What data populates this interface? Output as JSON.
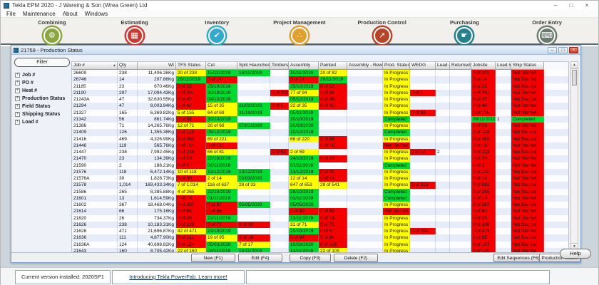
{
  "window": {
    "title": "Tekla EPM 2020 - J Wareing & Son (Wrea Green) Ltd",
    "controls": {
      "minimize": "–",
      "maximize": "□",
      "close": "×"
    }
  },
  "menu": {
    "items": [
      "File",
      "Maintenance",
      "About",
      "Windows"
    ]
  },
  "modules": [
    {
      "label": "Combining",
      "icon": "gears-icon",
      "glyph": "⚙",
      "color": "#8aa63f"
    },
    {
      "label": "Estimating",
      "icon": "calculator-icon",
      "glyph": "▦",
      "color": "#cc3b33"
    },
    {
      "label": "Inventory",
      "icon": "clipboard-icon",
      "glyph": "✔",
      "color": "#34a9cb"
    },
    {
      "label": "Project Management",
      "icon": "org-chart-icon",
      "glyph": "∴",
      "color": "#e0a030"
    },
    {
      "label": "Production Control",
      "icon": "line-chart-icon",
      "glyph": "↗",
      "color": "#b54428"
    },
    {
      "label": "Purchasing",
      "icon": "hand-card-icon",
      "glyph": "☛",
      "color": "#27808e"
    },
    {
      "label": "Order Entry",
      "icon": "keyboard-icon",
      "glyph": "⌨",
      "color": "#6a7a6f"
    }
  ],
  "child_window": {
    "title": "21759 - Production Status",
    "controls": {
      "minimize": "–",
      "maximize": "□",
      "close": "×"
    }
  },
  "filter_panel": {
    "filter_label": "Filter",
    "tree_items": [
      "Job #",
      "PO #",
      "Heat #",
      "Production Status",
      "Field Status",
      "Shipping Status",
      "Load #"
    ]
  },
  "grid": {
    "columns": [
      "Job #",
      "Qty",
      "Wt",
      "TFS Status",
      "Cut",
      "Split Haunches",
      "Timbers",
      "Assembly",
      "Painted",
      "Assembly - Rework",
      "Prod. Status",
      "WEDG",
      "Lead #",
      "Returned",
      "Jobsite",
      "Load #",
      "Ship Status"
    ],
    "widths": [
      64,
      28,
      54,
      42,
      44,
      46,
      26,
      42,
      40,
      50,
      38,
      36,
      20,
      30,
      34,
      22,
      46
    ],
    "sort_column": "Job #",
    "sort_indicator": "▲",
    "status_colors": {
      "r": "#f40000",
      "g": "#00d92e",
      "y": "#ffff00"
    },
    "rows": [
      [
        "26609",
        "238",
        "11,406.26Kg",
        "y:20 of 238",
        "g:15/11/2019",
        "g:14/11/2019",
        "",
        "g:18/11/2019",
        "y:20 of 82",
        "",
        "y:In Progress",
        "",
        "",
        "",
        "r:0 of 202",
        "",
        "r:Not Started"
      ],
      [
        "26746",
        "14",
        "207.86Kg",
        "g:26/11/2019",
        "r:0 of 14",
        "",
        "",
        "r:0 of 14",
        "g:26/11/2019",
        "",
        "y:In Progress",
        "",
        "",
        "",
        "r:0 of 14",
        "",
        "r:Not Started"
      ],
      [
        "21185",
        "23",
        "670.46Kg",
        "r:0 of 23",
        "g:25/10/2019",
        "",
        "",
        "g:25/10/2019",
        "r:0 of 10",
        "",
        "y:In Progress",
        "",
        "",
        "",
        "r:0 of 23",
        "",
        "r:Not Started"
      ],
      [
        "21190",
        "297",
        "17,094.43Kg",
        "r:0 of 297",
        "g:30/10/2019",
        "",
        "r:0 of 203",
        "y:77 of 94",
        "r:0 of 94",
        "",
        "y:In Progress",
        "r:0 of 1",
        "",
        "",
        "r:0 of 297",
        "",
        "r:Not Started"
      ],
      [
        "21243A",
        "47",
        "32,630.55Kg",
        "r:0 of 47",
        "g:04/12/2019",
        "",
        "",
        "g:05/12/2019",
        "r:0 of 46",
        "",
        "y:In Progress",
        "",
        "",
        "",
        "r:0 of 47",
        "",
        "r:Not Started"
      ],
      [
        "21294",
        "47",
        "8,003.94Kg",
        "r:0 of 47",
        "y:15 of 35",
        "g:21/02/2020",
        "r:0 of 5",
        "y:32 of 35",
        "r:0 of 35",
        "",
        "y:In Progress",
        "",
        "",
        "",
        "r:0 of 40",
        "",
        "r:Not Started"
      ],
      [
        "21327",
        "165",
        "6,369.82Kg",
        "y:5 of 155",
        "y:64 of 69",
        "g:31/10/2019",
        "",
        "g:05/11/2019",
        "",
        "",
        "y:In Progress",
        "r:0 of 69",
        "",
        "",
        "r:0 of 135",
        "",
        "r:Not Started"
      ],
      [
        "21342",
        "56",
        "861.74Kg",
        "r:0 of 55",
        "g:30/10/2019",
        "",
        "",
        "g:30/10/2019",
        "",
        "",
        "g:Completed",
        "",
        "",
        "",
        "g:06/11/2019",
        "1",
        "g:Completed"
      ],
      [
        "21386",
        "71",
        "14,265.76Kg",
        "y:12 of 71",
        "y:28 of 68",
        "g:07/01/2020",
        "",
        "g:20/03/2020",
        "",
        "",
        "y:In Progress",
        "",
        "",
        "",
        "r:0 of 59",
        "",
        "r:Not Started"
      ],
      [
        "21409",
        "126",
        "1,355.38Kg",
        "r:0 of 126",
        "g:05/12/2019",
        "",
        "",
        "g:10/12/2019",
        "",
        "",
        "g:Completed",
        "",
        "",
        "",
        "r:0 of 126",
        "",
        "r:Not Started"
      ],
      [
        "21416",
        "469",
        "4,326.99Kg",
        "r:0 of 469",
        "y:69 of 221",
        "",
        "",
        "y:68 of 220",
        "r:0 of 68",
        "",
        "y:In Progress",
        "",
        "",
        "",
        "r:0 of 469",
        "",
        "r:Not Started"
      ],
      [
        "21446",
        "119",
        "565.76Kg",
        "r:0 of 110",
        "r:0 of 116",
        "",
        "",
        "",
        "r:0 of 110",
        "",
        "r:Not Started",
        "",
        "",
        "",
        "r:0 of 110",
        "",
        "r:Not Started"
      ],
      [
        "21447",
        "238",
        "7,992.45Kg",
        "r:0 of 238",
        "y:66 of 81",
        "",
        "r:0 of 62",
        "y:2 of 59",
        "",
        "",
        "y:In Progress",
        "r:0 of 14",
        "2",
        "",
        "r:0 of 223",
        "",
        "r:Not Started"
      ],
      [
        "21470",
        "23",
        "134.39Kg",
        "r:0 of 23",
        "g:25/10/2019",
        "",
        "",
        "g:24/10/2019",
        "r:0 of 23",
        "",
        "y:In Progress",
        "",
        "",
        "",
        "r:0 of 23",
        "",
        "r:Not Started"
      ],
      [
        "21590",
        "2",
        "188.21Kg",
        "r:0 of 2",
        "g:06/11/2019",
        "",
        "",
        "g:07/11/2019",
        "",
        "",
        "g:Completed",
        "",
        "",
        "",
        "r:0 of 2",
        "",
        "r:Not Started"
      ],
      [
        "21576",
        "118",
        "6,472.14Kg",
        "y:10 of 118",
        "g:13/12/2019",
        "g:13/12/2019",
        "",
        "g:13/12/2019",
        "r:0 of 40",
        "",
        "y:In Progress",
        "",
        "",
        "",
        "r:0 of 102",
        "",
        "r:Not Started"
      ],
      [
        "21576A",
        "30",
        "1,828.73Kg",
        "r:0 of 30",
        "y:2 of 14",
        "g:03/03/2020",
        "",
        "y:12 of 14",
        "r:0 of 14",
        "",
        "y:In Progress",
        "",
        "",
        "",
        "r:0 of 14",
        "",
        "r:Not Started"
      ],
      [
        "21578",
        "1,014",
        "169,433.34Kg",
        "y:7 of 1,014",
        "y:116 of 637",
        "y:28 of 33",
        "",
        "y:647 of 653",
        "y:28 of 541",
        "",
        "y:In Progress",
        "r:0 of 316",
        "",
        "",
        "r:0 of 981",
        "",
        "r:Not Started"
      ],
      [
        "21586",
        "265",
        "8,385.88Kg",
        "y:4 of 265",
        "g:22/10/2019",
        "",
        "",
        "g:28/10/2019",
        "",
        "",
        "g:Completed",
        "",
        "",
        "",
        "r:0 of 265",
        "",
        "r:Not Started"
      ],
      [
        "21601",
        "13",
        "1,614.59Kg",
        "r:0 of 13",
        "g:01/11/2019",
        "",
        "",
        "g:01/11/2019",
        "",
        "",
        "g:Completed",
        "",
        "",
        "",
        "r:0 of 13",
        "",
        "r:Not Started"
      ],
      [
        "21602",
        "367",
        "18,468.04Kg",
        "r:0 of 367",
        "r:0 of 97",
        "g:05/05/2020",
        "",
        "g:05/05/2020",
        "",
        "",
        "y:In Progress",
        "",
        "",
        "",
        "r:0 of 367",
        "",
        "r:Not Started"
      ],
      [
        "21614",
        "66",
        "175.16Kg",
        "r:0 of 66",
        "r:0 of 66",
        "",
        "",
        "r:0 of 60",
        "r:0 of 60",
        "",
        "r:Not Started",
        "",
        "",
        "",
        "r:0 of 60",
        "",
        "r:Not Started"
      ],
      [
        "21620",
        "26",
        "734.37Kg",
        "r:0 of 26",
        "g:22/11/2019",
        "",
        "",
        "g:22/11/2019",
        "r:0 of 19",
        "",
        "y:In Progress",
        "",
        "",
        "",
        "r:0 of 20",
        "",
        "r:Not Started"
      ],
      [
        "21626",
        "238",
        "10,183.31Kg",
        "r:0 of 238",
        "r:0 of 72",
        "r:0 of 30",
        "",
        "y:31 of 71",
        "r:0 of 71",
        "",
        "y:In Progress",
        "",
        "",
        "",
        "r:0 of 208",
        "",
        "r:Not Started"
      ],
      [
        "21628",
        "471",
        "21,696.87Kg",
        "y:42 of 471",
        "g:29/10/2019",
        "",
        "",
        "g:29/10/2019",
        "r:0 of 3",
        "",
        "y:In Progress",
        "r:0 of 259",
        "",
        "",
        "r:0 of 471",
        "",
        "r:Not Started"
      ],
      [
        "21636",
        "111",
        "4,877.90Kg",
        "r:0 of 111",
        "y:19 of 95",
        "r:0 of 16",
        "",
        "r:0 of 94",
        "r:0 of 94",
        "",
        "y:In Progress",
        "",
        "",
        "",
        "r:0 of 95",
        "",
        "r:Not Started"
      ],
      [
        "21636A",
        "124",
        "40,698.82Kg",
        "r:0 of 124",
        "g:05/03/2020",
        "y:7 of 17",
        "",
        "g:10/03/2020",
        "r:0 of 106",
        "",
        "y:In Progress",
        "",
        "",
        "",
        "r:0 of 107",
        "",
        "r:Not Started"
      ],
      [
        "21643",
        "160",
        "8,705.42Kg",
        "y:22 of 160",
        "g:08/11/2019",
        "g:18/11/2019",
        "",
        "g:13/11/2019",
        "y:22 of 105",
        "",
        "y:In Progress",
        "",
        "",
        "",
        "r:0 of 120",
        "",
        "r:Not Started"
      ]
    ]
  },
  "buttons": {
    "bottom_left": [
      "New (F1)",
      "Edit (F4)",
      "Copy (F3)",
      "Delete (F2)"
    ],
    "bottom_right": [
      "Edit Sequences (F6)",
      "Production Status"
    ],
    "help": "Help"
  },
  "status_bar": {
    "version_label": "Current version installed:",
    "version_value": "2020SP1",
    "promo_link": "Introducing Tekla PowerFab. Learn more!"
  }
}
